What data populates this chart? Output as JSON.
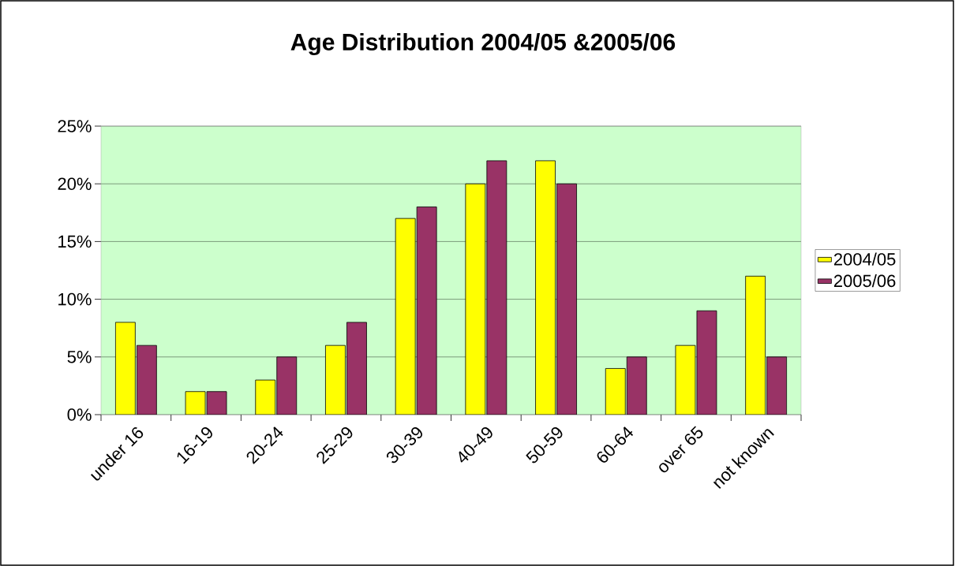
{
  "chart_data": {
    "type": "bar",
    "title": "Age Distribution 2004/05 &2005/06",
    "categories": [
      "under 16",
      "16-19",
      "20-24",
      "25-29",
      "30-39",
      "40-49",
      "50-59",
      "60-64",
      "over 65",
      "not known"
    ],
    "series": [
      {
        "name": "2004/05",
        "color": "#ffff00",
        "values": [
          8,
          2,
          3,
          6,
          17,
          20,
          22,
          4,
          6,
          12
        ]
      },
      {
        "name": "2005/06",
        "color": "#993366",
        "values": [
          6,
          2,
          5,
          8,
          18,
          22,
          20,
          5,
          9,
          5
        ]
      }
    ],
    "ylim": [
      0,
      25
    ],
    "yticks": [
      {
        "value": 0,
        "label": "0%"
      },
      {
        "value": 5,
        "label": "5%"
      },
      {
        "value": 10,
        "label": "10%"
      },
      {
        "value": 15,
        "label": "15%"
      },
      {
        "value": 20,
        "label": "20%"
      },
      {
        "value": 25,
        "label": "25%"
      }
    ],
    "grid": "y",
    "legend": "right"
  }
}
